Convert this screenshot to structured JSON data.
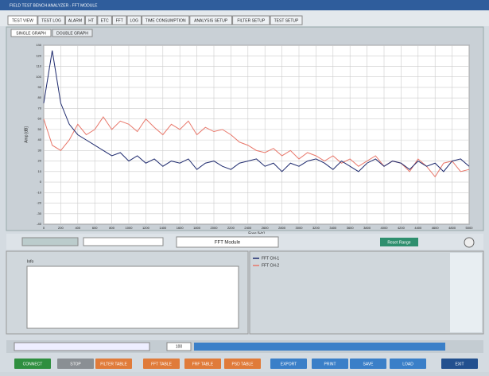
{
  "window_title": "FIELD TEST BENCH ANALYZER - FFT MODULE",
  "tabs": [
    "TEST VIEW",
    "TEST LOG",
    "ALARM",
    "HT",
    "ETC",
    "FFT",
    "LOG",
    "TIME CONSUMPTION",
    "ANALYSIS SETUP",
    "FILTER SETUP",
    "TEST SETUP"
  ],
  "subtabs": [
    "SINGLE GRAPH",
    "DOUBLE GRAPH"
  ],
  "module_label": "FFT Module",
  "range_button": "Reset Range",
  "info_label": "Info",
  "status_value": "100",
  "bottom_buttons": [
    "CONNECT",
    "STOP",
    "FILTER TABLE",
    "FFT TABLE",
    "FRF TABLE",
    "PSD TABLE",
    "EXPORT",
    "PRINT",
    "SAVE",
    "LOAD",
    "EXIT"
  ],
  "chart_data": {
    "type": "line",
    "x_label": "Freq [Hz]",
    "y_label": "Amp [dB]",
    "x": [
      0,
      100,
      200,
      300,
      400,
      500,
      600,
      700,
      800,
      900,
      1000,
      1100,
      1200,
      1300,
      1400,
      1500,
      1600,
      1700,
      1800,
      1900,
      2000,
      2100,
      2200,
      2300,
      2400,
      2500,
      2600,
      2700,
      2800,
      2900,
      3000,
      3100,
      3200,
      3300,
      3400,
      3500,
      3600,
      3700,
      3800,
      3900,
      4000,
      4100,
      4200,
      4300,
      4400,
      4500,
      4600,
      4700,
      4800,
      4900,
      5000
    ],
    "series": [
      {
        "name": "FFT CH-1",
        "color": "#1e2a6e",
        "values": [
          75,
          125,
          75,
          55,
          45,
          40,
          35,
          30,
          25,
          28,
          20,
          25,
          18,
          22,
          15,
          20,
          18,
          22,
          12,
          18,
          20,
          15,
          12,
          18,
          20,
          22,
          15,
          18,
          10,
          18,
          15,
          20,
          22,
          18,
          12,
          20,
          15,
          10,
          18,
          22,
          15,
          20,
          18,
          12,
          20,
          15,
          18,
          10,
          20,
          22,
          15
        ]
      },
      {
        "name": "FFT CH-2",
        "color": "#e8776a",
        "values": [
          60,
          35,
          30,
          40,
          55,
          45,
          50,
          62,
          50,
          58,
          55,
          48,
          60,
          52,
          45,
          55,
          50,
          58,
          45,
          52,
          48,
          50,
          45,
          38,
          35,
          30,
          28,
          32,
          25,
          30,
          22,
          28,
          25,
          20,
          25,
          18,
          22,
          15,
          20,
          25,
          15,
          20,
          18,
          10,
          22,
          15,
          5,
          18,
          20,
          10,
          12
        ]
      }
    ],
    "xlim": [
      0,
      5000
    ],
    "ylim": [
      -40,
      130
    ],
    "xticks": [
      0,
      200,
      400,
      600,
      800,
      1000,
      1200,
      1400,
      1600,
      1800,
      2000,
      2200,
      2400,
      2600,
      2800,
      3000,
      3200,
      3400,
      3600,
      3800,
      4000,
      4200,
      4400,
      4600,
      4800,
      5000
    ],
    "yticks": [
      -40,
      -30,
      -20,
      -10,
      0,
      10,
      20,
      30,
      40,
      50,
      60,
      70,
      80,
      90,
      100,
      110,
      120,
      130
    ],
    "grid": true
  }
}
